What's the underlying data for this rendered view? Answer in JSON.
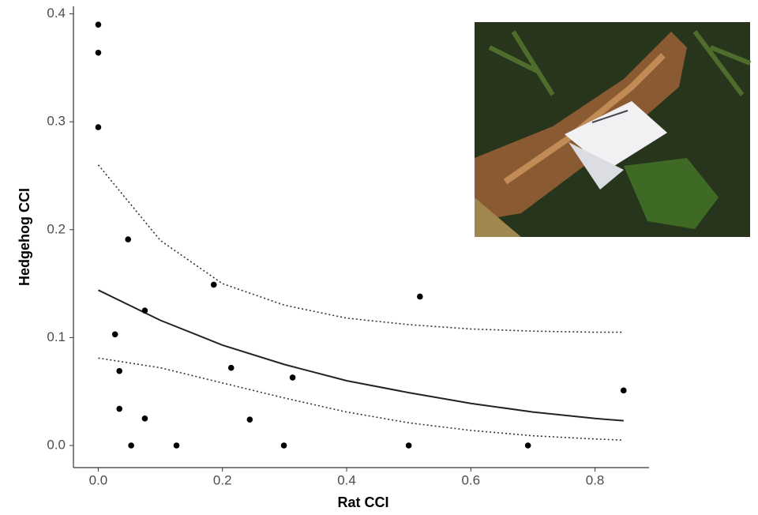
{
  "chart_data": {
    "type": "scatter",
    "x_label": "Rat CCI",
    "y_label": "Hedgehog CCI",
    "xlim": [
      -0.04,
      0.887
    ],
    "ylim": [
      -0.0205,
      0.407
    ],
    "xticks": [
      {
        "value": 0,
        "label": "0.0"
      },
      0.2,
      0.4,
      0.6,
      0.8
    ],
    "yticks": [
      {
        "value": 0,
        "label": "0.0"
      },
      0.1,
      0.2,
      0.3,
      0.4
    ],
    "grid": false,
    "points": {
      "color": "#000000",
      "x": [
        0,
        0,
        0,
        0.048,
        0.186,
        0.075,
        0.027,
        0.034,
        0.214,
        0.313,
        0.034,
        0.075,
        0.244,
        0.053,
        0.126,
        0.299,
        0.5,
        0.518,
        0.692,
        0.846
      ],
      "values": [
        0.39,
        0.364,
        0.295,
        0.191,
        0.149,
        0.125,
        0.103,
        0.069,
        0.072,
        0.063,
        0.034,
        0.025,
        0.024,
        0,
        0,
        0,
        0,
        0.138,
        0,
        0.051
      ]
    },
    "lines": [
      {
        "color": "#222222",
        "dashed": false,
        "x": [
          0,
          0.1,
          0.2,
          0.3,
          0.4,
          0.5,
          0.6,
          0.7,
          0.8,
          0.846
        ],
        "values": [
          0.144,
          0.116,
          0.093,
          0.075,
          0.06,
          0.049,
          0.039,
          0.031,
          0.025,
          0.023
        ]
      },
      {
        "color": "#333333",
        "dashed": true,
        "x": [
          0,
          0.1,
          0.2,
          0.3,
          0.4,
          0.5,
          0.6,
          0.7,
          0.8,
          0.846
        ],
        "values": [
          0.26,
          0.19,
          0.15,
          0.13,
          0.118,
          0.112,
          0.108,
          0.106,
          0.105,
          0.105
        ]
      },
      {
        "color": "#333333",
        "dashed": true,
        "x": [
          0,
          0.1,
          0.2,
          0.3,
          0.4,
          0.5,
          0.6,
          0.7,
          0.8,
          0.846
        ],
        "values": [
          0.081,
          0.072,
          0.058,
          0.044,
          0.031,
          0.021,
          0.014,
          0.009,
          0.006,
          0.005
        ]
      }
    ]
  }
}
